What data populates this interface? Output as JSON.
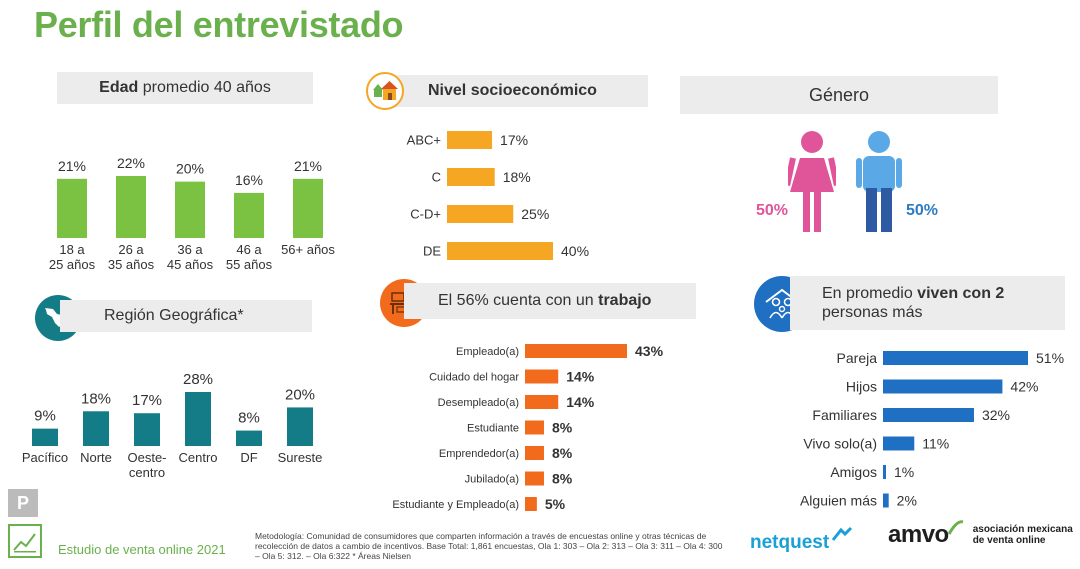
{
  "page": {
    "title": "Perfil del entrevistado",
    "footer_study": "Estudio de venta online 2021",
    "footer_badge": "P",
    "methodology": "Metodología: Comunidad de consumidores que comparten información a través de encuestas online y otras técnicas de recolección de datos a cambio de incentivos. Base Total: 1,861 encuestas, Ola 1: 303 – Ola 2: 313 – Ola 3: 311 – Ola 4: 300 – Ola 5: 312. – Ola 6:322 * Áreas Nielsen",
    "logo_netquest": "netquest",
    "logo_amvo": "amvo",
    "logo_amvo_text1": "asociación mexicana",
    "logo_amvo_text2": "de venta online"
  },
  "headers": {
    "edad_bold": "Edad",
    "edad_rest": " promedio 40 años",
    "nivel": "Nivel socioeconómico",
    "genero": "Género",
    "region": "Región Geográfica*",
    "trabajo_pre": "El 56% cuenta con un ",
    "trabajo_bold": "trabajo",
    "viven_pre": "En promedio ",
    "viven_bold": "viven con 2",
    "viven_line2": "personas más"
  },
  "gender": {
    "female_label": "50%",
    "male_label": "50%",
    "female_color": "#e0559a",
    "male_color": "#2e7cbf"
  },
  "chart_data": [
    {
      "id": "edad",
      "type": "bar",
      "orientation": "vertical",
      "color": "#7bc142",
      "categories": [
        [
          "18 a",
          "25 años"
        ],
        [
          "26 a",
          "35 años"
        ],
        [
          "36 a",
          "45 años"
        ],
        [
          "46 a",
          "55 años"
        ],
        [
          "56+ años"
        ]
      ],
      "values": [
        21,
        22,
        20,
        16,
        21
      ],
      "labels": [
        "21%",
        "22%",
        "20%",
        "16%",
        "21%"
      ],
      "ylim": [
        0,
        22
      ]
    },
    {
      "id": "nivel",
      "type": "bar",
      "orientation": "horizontal",
      "color": "#f5a623",
      "categories": [
        "ABC+",
        "C",
        "C-D+",
        "DE"
      ],
      "values": [
        17,
        18,
        25,
        40
      ],
      "labels": [
        "17%",
        "18%",
        "25%",
        "40%"
      ],
      "xlim": [
        0,
        40
      ]
    },
    {
      "id": "region",
      "type": "bar",
      "orientation": "vertical",
      "color": "#137c86",
      "categories": [
        [
          "Pacífico"
        ],
        [
          "Norte"
        ],
        [
          "Oeste-",
          "centro"
        ],
        [
          "Centro"
        ],
        [
          "DF"
        ],
        [
          "Sureste"
        ]
      ],
      "values": [
        9,
        18,
        17,
        28,
        8,
        20
      ],
      "labels": [
        "9%",
        "18%",
        "17%",
        "28%",
        "8%",
        "20%"
      ],
      "ylim": [
        0,
        28
      ]
    },
    {
      "id": "trabajo",
      "type": "bar",
      "orientation": "horizontal",
      "color": "#f26a1b",
      "categories": [
        "Empleado(a)",
        "Cuidado del hogar",
        "Desempleado(a)",
        "Estudiante",
        "Emprendedor(a)",
        "Jubilado(a)",
        "Estudiante y Empleado(a)"
      ],
      "values": [
        43,
        14,
        14,
        8,
        8,
        8,
        5
      ],
      "labels": [
        "43%",
        "14%",
        "14%",
        "8%",
        "8%",
        "8%",
        "5%"
      ],
      "xlim": [
        0,
        43
      ]
    },
    {
      "id": "viven",
      "type": "bar",
      "orientation": "horizontal",
      "color": "#1f6fc2",
      "categories": [
        "Pareja",
        "Hijos",
        "Familiares",
        "Vivo solo(a)",
        "Amigos",
        "Alguien más"
      ],
      "values": [
        51,
        42,
        32,
        11,
        1,
        2
      ],
      "labels": [
        "51%",
        "42%",
        "32%",
        "11%",
        "1%",
        "2%"
      ],
      "xlim": [
        0,
        51
      ]
    }
  ]
}
